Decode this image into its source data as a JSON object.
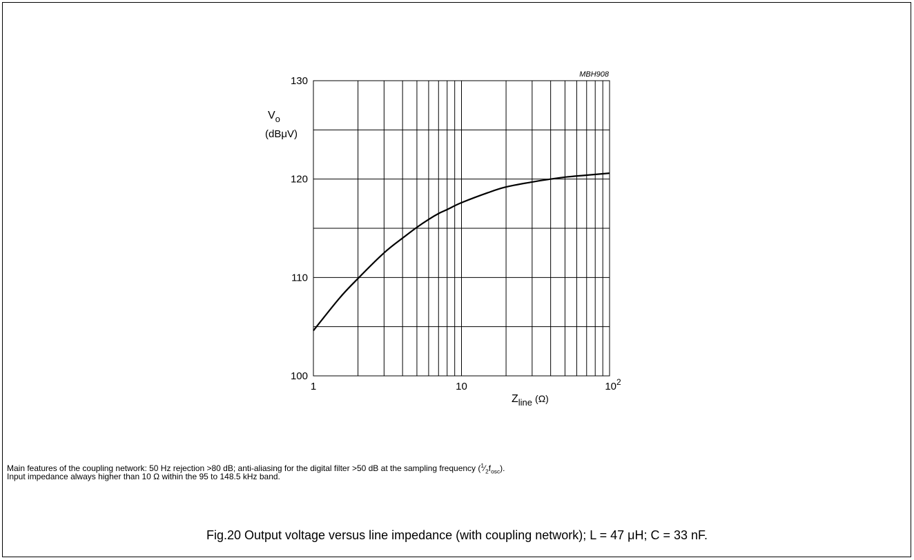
{
  "chart_data": {
    "type": "line",
    "code": "MBH908",
    "x_scale": "log",
    "xlim": [
      1,
      100
    ],
    "ylim": [
      100,
      130
    ],
    "grid": true,
    "x_ticks": [
      {
        "value": 1,
        "label": "1"
      },
      {
        "value": 10,
        "label": "10"
      },
      {
        "value": 100,
        "base": "10",
        "exp": "2"
      }
    ],
    "y_ticks": [
      {
        "value": 100,
        "label": "100"
      },
      {
        "value": 110,
        "label": "110"
      },
      {
        "value": 120,
        "label": "120"
      },
      {
        "value": 130,
        "label": "130"
      }
    ],
    "ylabel": {
      "main": "V",
      "sub": "o",
      "unit": "(dBμV)"
    },
    "xlabel": {
      "main": "Z",
      "sub": "line",
      "unit": "(Ω)"
    },
    "series": [
      {
        "x": [
          1,
          1.5,
          2,
          3,
          4,
          5,
          6,
          7,
          8,
          10,
          15,
          20,
          30,
          40,
          50,
          70,
          100
        ],
        "y": [
          104.6,
          107.9,
          109.9,
          112.5,
          114.0,
          115.1,
          115.9,
          116.5,
          116.9,
          117.6,
          118.6,
          119.2,
          119.7,
          120.0,
          120.2,
          120.4,
          120.6
        ]
      }
    ]
  },
  "notes": {
    "line1_main": "Main features of the coupling network: 50 Hz rejection >80 dB; anti-aliasing for the digital filter >50 dB at the sampling frequency (",
    "frac_num": "1",
    "frac_den": "2",
    "f": "f",
    "f_sub": "osc",
    "line1_end": ").",
    "line2": "Input impedance always higher than 10 Ω within the 95 to 148.5 kHz band."
  },
  "caption": "Fig.20  Output voltage versus line impedance (with coupling network); L = 47 μH; C = 33 nF."
}
